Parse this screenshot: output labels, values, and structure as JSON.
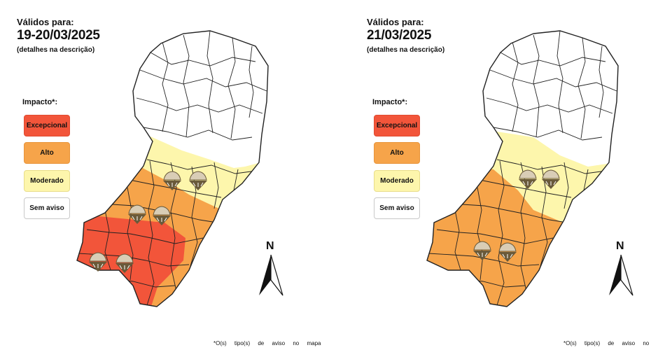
{
  "maps": [
    {
      "valid_label": "Válidos para:",
      "valid_date": "19-20/03/2025",
      "valid_note": "(detalhes na descrição)",
      "impact_title": "Impacto*:",
      "legend": [
        "Excepcional",
        "Alto",
        "Moderado",
        "Sem aviso"
      ],
      "north_label": "N",
      "footnote": "*O(s) tipo(s) de aviso no mapa"
    },
    {
      "valid_label": "Válidos para:",
      "valid_date": "21/03/2025",
      "valid_note": "(detalhes na descrição)",
      "impact_title": "Impacto*:",
      "legend": [
        "Excepcional",
        "Alto",
        "Moderado",
        "Sem aviso"
      ],
      "north_label": "N",
      "footnote": "*O(s) tipo(s) de aviso no"
    }
  ],
  "colors": {
    "excepcional": "#f2553a",
    "alto": "#f6a44a",
    "moderado": "#fdf6ac",
    "sem_aviso": "#ffffff",
    "border": "#333333"
  },
  "icons": [
    "hail-storm-icon"
  ]
}
